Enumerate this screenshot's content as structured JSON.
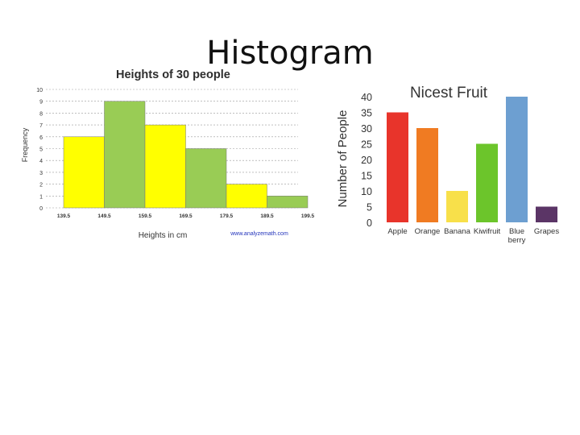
{
  "slide": {
    "title": "Histogram"
  },
  "chart_data": [
    {
      "type": "bar",
      "title": "Heights of 30 people",
      "xlabel": "Heights in cm",
      "ylabel": "Frequency",
      "bin_edges": [
        "139.5",
        "149.5",
        "159.5",
        "169.5",
        "179.5",
        "189.5",
        "199.5"
      ],
      "y_ticks": [
        "0",
        "1",
        "2",
        "3",
        "4",
        "5",
        "6",
        "7",
        "8",
        "9",
        "10"
      ],
      "values": [
        6,
        9,
        7,
        5,
        2,
        1
      ],
      "ylim": [
        0,
        10
      ],
      "grid": true,
      "watermark": "www.analyzemath.com",
      "colors": [
        "#ffff00",
        "#99cc55",
        "#ffff00",
        "#99cc55",
        "#ffff00",
        "#99cc55"
      ]
    },
    {
      "type": "bar",
      "title": "Nicest Fruit",
      "ylabel": "Number of People",
      "categories": [
        "Apple",
        "Orange",
        "Banana",
        "Kiwifruit",
        "Blue berry",
        "Grapes"
      ],
      "category_lines": [
        [
          "Apple"
        ],
        [
          "Orange"
        ],
        [
          "Banana"
        ],
        [
          "Kiwifruit"
        ],
        [
          "Blue",
          "berry"
        ],
        [
          "Grapes"
        ]
      ],
      "values": [
        35,
        30,
        10,
        25,
        40,
        5
      ],
      "y_ticks": [
        "0",
        "5",
        "10",
        "15",
        "20",
        "25",
        "30",
        "35",
        "40"
      ],
      "ylim": [
        0,
        40
      ],
      "grid": false,
      "colors": [
        "#e8342b",
        "#f07b22",
        "#f8e04a",
        "#6cc52b",
        "#6d9fd1",
        "#5b3566"
      ]
    }
  ]
}
